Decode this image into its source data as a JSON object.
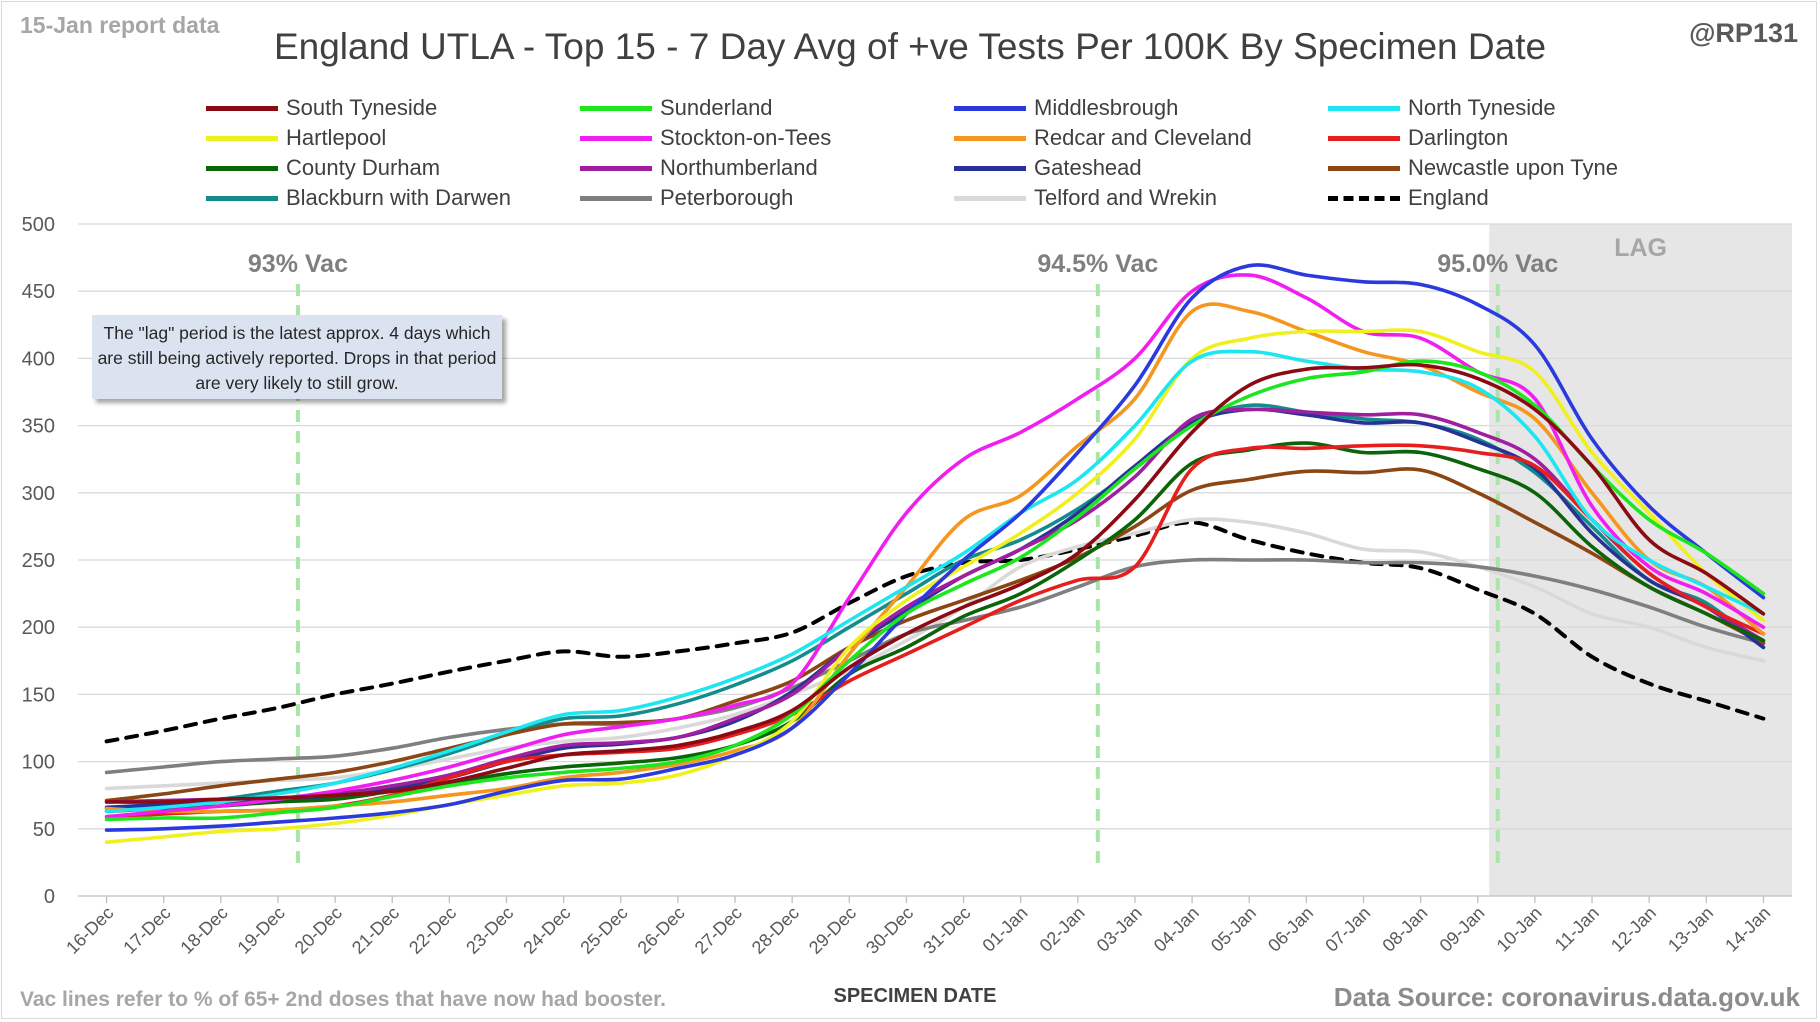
{
  "header": {
    "report_tag": "15-Jan report data",
    "author": "@RP131",
    "title": "England UTLA - Top 15 - 7 Day Avg of +ve Tests Per 100K By Specimen Date"
  },
  "footer": {
    "vac_note": "Vac lines refer to % of 65+ 2nd doses that have now had booster.",
    "source": "Data Source: coronavirus.data.gov.uk"
  },
  "note_box": {
    "text": "The \"lag\" period is the latest approx. 4 days which are still being actively reported.  Drops in that period are very likely to still grow."
  },
  "chart_data": {
    "type": "line",
    "title": "England UTLA - Top 15 - 7 Day Avg of +ve Tests Per 100K By Specimen Date",
    "xlabel": "SPECIMEN DATE",
    "ylabel": "",
    "ylim": [
      0,
      500
    ],
    "yticks": [
      0,
      50,
      100,
      150,
      200,
      250,
      300,
      350,
      400,
      450,
      500
    ],
    "grid": true,
    "legend_position": "top",
    "categories": [
      "16-Dec",
      "17-Dec",
      "18-Dec",
      "19-Dec",
      "20-Dec",
      "21-Dec",
      "22-Dec",
      "23-Dec",
      "24-Dec",
      "25-Dec",
      "26-Dec",
      "27-Dec",
      "28-Dec",
      "29-Dec",
      "30-Dec",
      "31-Dec",
      "01-Jan",
      "02-Jan",
      "03-Jan",
      "04-Jan",
      "05-Jan",
      "06-Jan",
      "07-Jan",
      "08-Jan",
      "09-Jan",
      "10-Jan",
      "11-Jan",
      "12-Jan",
      "13-Jan",
      "14-Jan"
    ],
    "lag": {
      "label": "LAG",
      "from_index": 24.7,
      "color": "#e6e6e6"
    },
    "vac_lines": [
      {
        "label": "93% Vac",
        "position": 3.35
      },
      {
        "label": "94.5% Vac",
        "position": 17.35
      },
      {
        "label": "95.0% Vac",
        "position": 24.35
      }
    ],
    "series": [
      {
        "name": "South Tyneside",
        "color": "#8b0a14",
        "dashed": false,
        "values": [
          70,
          70,
          72,
          73,
          75,
          78,
          85,
          95,
          105,
          108,
          112,
          122,
          138,
          170,
          195,
          215,
          232,
          255,
          295,
          345,
          380,
          392,
          393,
          395,
          385,
          362,
          320,
          265,
          240,
          210
        ]
      },
      {
        "name": "Sunderland",
        "color": "#1ee61e",
        "dashed": false,
        "values": [
          57,
          58,
          58,
          62,
          66,
          74,
          82,
          88,
          92,
          95,
          100,
          112,
          135,
          175,
          210,
          232,
          252,
          282,
          318,
          350,
          372,
          385,
          390,
          398,
          390,
          365,
          320,
          280,
          255,
          225
        ]
      },
      {
        "name": "Middlesbrough",
        "color": "#2a3adf",
        "dashed": false,
        "values": [
          49,
          50,
          52,
          55,
          58,
          62,
          68,
          78,
          86,
          87,
          95,
          105,
          125,
          165,
          210,
          250,
          285,
          330,
          380,
          445,
          469,
          462,
          457,
          455,
          440,
          410,
          340,
          290,
          255,
          222
        ]
      },
      {
        "name": "North Tyneside",
        "color": "#1ee6f0",
        "dashed": false,
        "values": [
          63,
          66,
          70,
          76,
          84,
          95,
          108,
          122,
          135,
          138,
          148,
          162,
          180,
          205,
          230,
          255,
          285,
          310,
          350,
          398,
          405,
          398,
          392,
          390,
          378,
          342,
          280,
          250,
          230,
          210
        ]
      },
      {
        "name": "Hartlepool",
        "color": "#f0f01e",
        "dashed": false,
        "values": [
          40,
          44,
          48,
          50,
          54,
          60,
          68,
          75,
          82,
          84,
          90,
          105,
          130,
          185,
          220,
          245,
          270,
          300,
          340,
          400,
          415,
          420,
          420,
          420,
          405,
          390,
          330,
          285,
          240,
          205
        ]
      },
      {
        "name": "Stockton-on-Tees",
        "color": "#f01ef0",
        "dashed": false,
        "values": [
          59,
          63,
          67,
          72,
          78,
          86,
          96,
          108,
          120,
          126,
          132,
          142,
          158,
          222,
          285,
          325,
          345,
          370,
          400,
          450,
          462,
          445,
          420,
          415,
          390,
          370,
          290,
          245,
          225,
          200
        ]
      },
      {
        "name": "Redcar and Cleveland",
        "color": "#f5961e",
        "dashed": false,
        "values": [
          65,
          63,
          63,
          64,
          67,
          70,
          75,
          80,
          88,
          92,
          98,
          108,
          125,
          180,
          230,
          280,
          298,
          335,
          370,
          435,
          435,
          420,
          405,
          395,
          375,
          355,
          300,
          250,
          230,
          195
        ]
      },
      {
        "name": "Darlington",
        "color": "#e61e1e",
        "dashed": false,
        "values": [
          59,
          61,
          63,
          64,
          67,
          75,
          88,
          100,
          105,
          107,
          110,
          120,
          135,
          160,
          180,
          200,
          220,
          235,
          245,
          318,
          333,
          333,
          335,
          335,
          330,
          320,
          280,
          240,
          215,
          195
        ]
      },
      {
        "name": "County Durham",
        "color": "#0a640a",
        "dashed": false,
        "values": [
          63,
          65,
          67,
          70,
          72,
          78,
          84,
          91,
          96,
          99,
          103,
          112,
          130,
          165,
          185,
          208,
          225,
          250,
          280,
          322,
          332,
          337,
          330,
          330,
          318,
          300,
          260,
          230,
          210,
          190
        ]
      },
      {
        "name": "Northumberland",
        "color": "#a01ea0",
        "dashed": false,
        "values": [
          70,
          71,
          72,
          73,
          76,
          82,
          90,
          102,
          112,
          114,
          118,
          132,
          150,
          185,
          215,
          238,
          258,
          280,
          312,
          355,
          362,
          360,
          358,
          358,
          345,
          325,
          280,
          240,
          215,
          190
        ]
      },
      {
        "name": "Gateshead",
        "color": "#283296",
        "dashed": false,
        "values": [
          66,
          68,
          70,
          72,
          74,
          80,
          88,
          100,
          110,
          113,
          118,
          130,
          152,
          185,
          212,
          238,
          258,
          285,
          320,
          352,
          362,
          358,
          352,
          352,
          338,
          318,
          270,
          235,
          215,
          185
        ]
      },
      {
        "name": "Newcastle upon Tyne",
        "color": "#8c4614",
        "dashed": false,
        "values": [
          71,
          76,
          82,
          87,
          92,
          100,
          110,
          120,
          128,
          129,
          132,
          145,
          160,
          185,
          205,
          220,
          235,
          252,
          275,
          302,
          310,
          316,
          315,
          317,
          300,
          278,
          255,
          230,
          210,
          188
        ]
      },
      {
        "name": "Blackburn with Darwen",
        "color": "#148c8c",
        "dashed": false,
        "values": [
          65,
          68,
          72,
          78,
          84,
          94,
          106,
          120,
          132,
          134,
          143,
          157,
          175,
          200,
          225,
          250,
          265,
          288,
          318,
          352,
          365,
          360,
          355,
          352,
          340,
          315,
          275,
          235,
          218,
          185
        ]
      },
      {
        "name": "Peterborough",
        "color": "#7f7f7f",
        "dashed": false,
        "values": [
          92,
          96,
          100,
          102,
          104,
          110,
          118,
          124,
          128,
          128,
          132,
          140,
          155,
          175,
          195,
          205,
          215,
          230,
          245,
          250,
          250,
          250,
          248,
          248,
          245,
          238,
          228,
          215,
          200,
          188
        ]
      },
      {
        "name": "Telford and Wrekin",
        "color": "#d9d9d9",
        "dashed": false,
        "values": [
          80,
          82,
          84,
          86,
          88,
          94,
          102,
          110,
          115,
          118,
          125,
          135,
          150,
          168,
          190,
          215,
          245,
          260,
          270,
          280,
          278,
          270,
          258,
          256,
          245,
          230,
          210,
          200,
          185,
          175
        ]
      },
      {
        "name": "England",
        "color": "#000000",
        "dashed": true,
        "values": [
          115,
          123,
          132,
          140,
          150,
          158,
          167,
          175,
          182,
          178,
          182,
          188,
          196,
          218,
          238,
          248,
          250,
          258,
          268,
          278,
          265,
          255,
          248,
          244,
          228,
          210,
          178,
          158,
          145,
          132
        ]
      }
    ]
  }
}
